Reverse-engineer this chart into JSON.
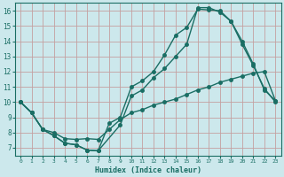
{
  "xlabel": "Humidex (Indice chaleur)",
  "bg_color": "#cce8ec",
  "grid_color": "#c4a0a0",
  "line_color": "#1a6e64",
  "xlim": [
    -0.5,
    23.5
  ],
  "ylim": [
    6.5,
    16.5
  ],
  "xtick_labels": [
    "0",
    "1",
    "2",
    "3",
    "4",
    "5",
    "6",
    "7",
    "8",
    "9",
    "10",
    "11",
    "12",
    "13",
    "14",
    "15",
    "16",
    "17",
    "18",
    "19",
    "20",
    "21",
    "22",
    "23"
  ],
  "xtick_vals": [
    0,
    1,
    2,
    3,
    4,
    5,
    6,
    7,
    8,
    9,
    10,
    11,
    12,
    13,
    14,
    15,
    16,
    17,
    18,
    19,
    20,
    21,
    22,
    23
  ],
  "ytick_vals": [
    7,
    8,
    9,
    10,
    11,
    12,
    13,
    14,
    15,
    16
  ],
  "curve1_x": [
    0,
    1,
    2,
    3,
    4,
    5,
    6,
    7,
    8,
    9,
    10,
    11,
    12,
    13,
    14,
    15,
    16,
    17,
    18,
    19,
    20,
    21,
    22,
    23
  ],
  "curve1_y": [
    10,
    9.3,
    8.2,
    7.8,
    7.3,
    7.2,
    6.85,
    6.8,
    8.6,
    9.0,
    11.0,
    11.4,
    12.0,
    13.1,
    14.4,
    14.9,
    16.1,
    16.05,
    16.0,
    15.3,
    14.0,
    12.5,
    10.8,
    10.1
  ],
  "curve2_x": [
    0,
    1,
    2,
    3,
    4,
    5,
    6,
    7,
    9,
    10,
    11,
    12,
    13,
    14,
    15,
    16,
    17,
    18,
    19,
    20,
    21,
    22,
    23
  ],
  "curve2_y": [
    10,
    9.3,
    8.2,
    7.8,
    7.3,
    7.2,
    6.85,
    6.8,
    8.5,
    10.4,
    10.8,
    11.6,
    12.2,
    13.0,
    13.8,
    16.2,
    16.2,
    15.9,
    15.3,
    13.8,
    12.4,
    10.9,
    10.0
  ],
  "curve3_x": [
    0,
    1,
    2,
    3,
    4,
    5,
    6,
    7,
    8,
    9,
    10,
    11,
    12,
    13,
    14,
    15,
    16,
    17,
    18,
    19,
    20,
    21,
    22,
    23
  ],
  "curve3_y": [
    10,
    9.3,
    8.2,
    8.0,
    7.6,
    7.55,
    7.6,
    7.55,
    8.2,
    8.85,
    9.3,
    9.5,
    9.8,
    10.0,
    10.2,
    10.5,
    10.8,
    11.0,
    11.3,
    11.5,
    11.7,
    11.9,
    12.0,
    10.1
  ]
}
